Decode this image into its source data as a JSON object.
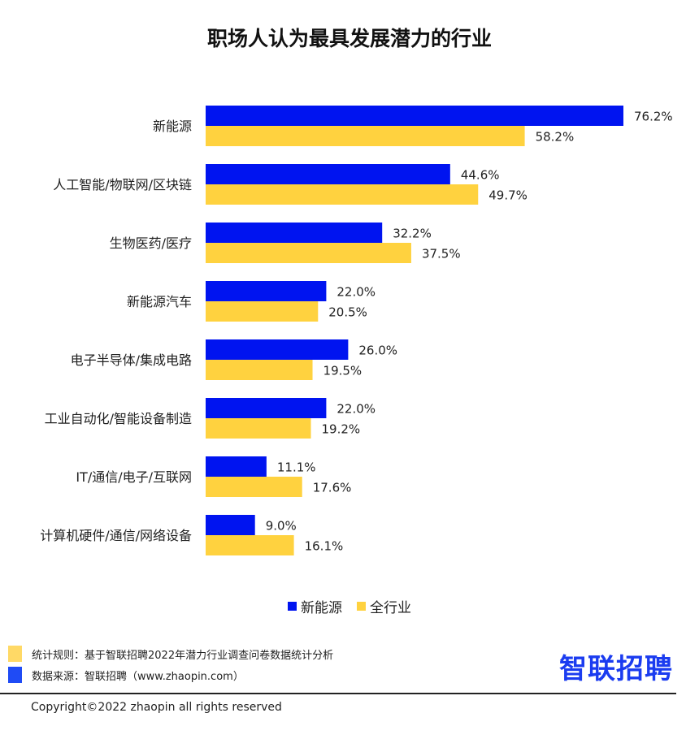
{
  "chart_data": {
    "type": "bar",
    "orientation": "horizontal",
    "title": "职场人认为最具发展潜力的行业",
    "categories": [
      "新能源",
      "人工智能/物联网/区块链",
      "生物医药/医疗",
      "新能源汽车",
      "电子半导体/集成电路",
      "工业自动化/智能设备制造",
      "IT/通信/电子/互联网",
      "计算机硬件/通信/网络设备"
    ],
    "series": [
      {
        "name": "新能源",
        "color": "#0014F0",
        "values": [
          76.2,
          44.6,
          32.2,
          22.0,
          26.0,
          22.0,
          11.1,
          9.0
        ]
      },
      {
        "name": "全行业",
        "color": "#FFD23F",
        "values": [
          58.2,
          49.7,
          37.5,
          20.5,
          19.5,
          19.2,
          17.6,
          16.1
        ]
      }
    ],
    "value_suffix": "%",
    "grid": false,
    "legend_position": "bottom"
  },
  "footer": {
    "note_rule": "统计规则：基于智联招聘2022年潜力行业调查问卷数据统计分析",
    "note_source": "数据来源：智联招聘（www.zhaopin.com）",
    "note_rule_color": "#FFD966",
    "note_source_color": "#1F4BF5",
    "logo": "智联招聘",
    "copyright": "Copyright©2022 zhaopin all rights reserved"
  }
}
